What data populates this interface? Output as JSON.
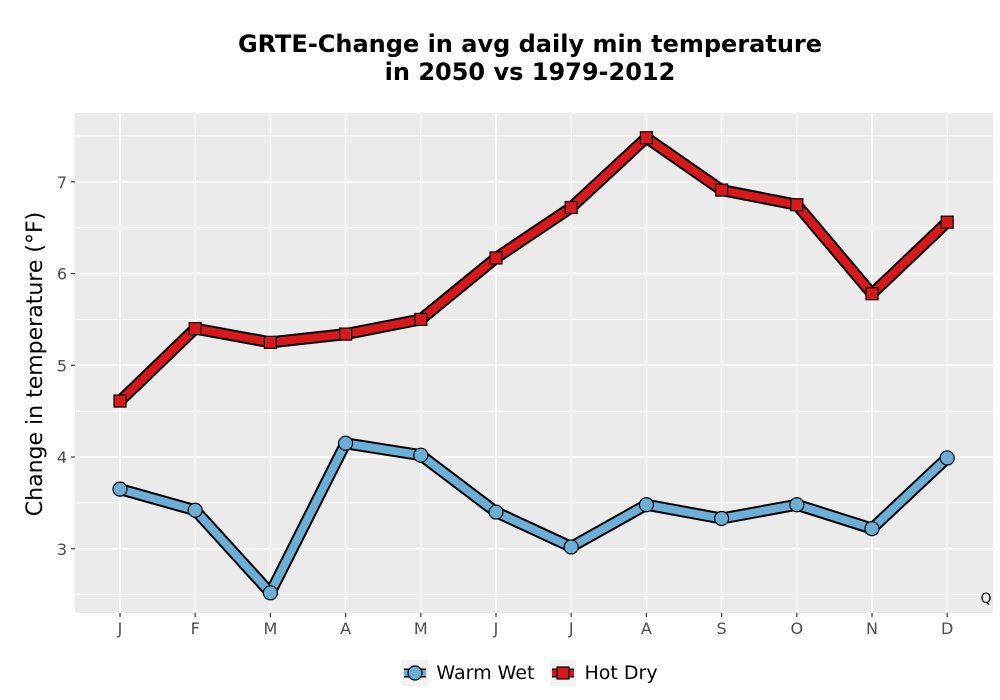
{
  "chart_data": {
    "type": "line",
    "title_line1": "GRTE-Change in avg daily min temperature",
    "title_line2": "in 2050 vs 1979-2012",
    "xlabel": "",
    "ylabel": "Change in temperature (°F)",
    "categories": [
      "J",
      "F",
      "M",
      "A",
      "M",
      "J",
      "J",
      "A",
      "S",
      "O",
      "N",
      "D"
    ],
    "ylim": [
      2.3,
      7.75
    ],
    "yticks": [
      3,
      4,
      5,
      6,
      7
    ],
    "grid": true,
    "legend_position": "bottom",
    "corner_note": "Q",
    "series": [
      {
        "name": "Warm Wet",
        "color": "#6baed6",
        "marker": "circle",
        "values": [
          3.65,
          3.42,
          2.52,
          4.15,
          4.02,
          3.4,
          3.02,
          3.48,
          3.33,
          3.48,
          3.22,
          3.99
        ]
      },
      {
        "name": "Hot Dry",
        "color": "#d7191c",
        "marker": "square",
        "values": [
          4.61,
          5.4,
          5.25,
          5.34,
          5.5,
          6.17,
          6.72,
          7.48,
          6.91,
          6.75,
          5.78,
          6.56
        ]
      }
    ]
  }
}
